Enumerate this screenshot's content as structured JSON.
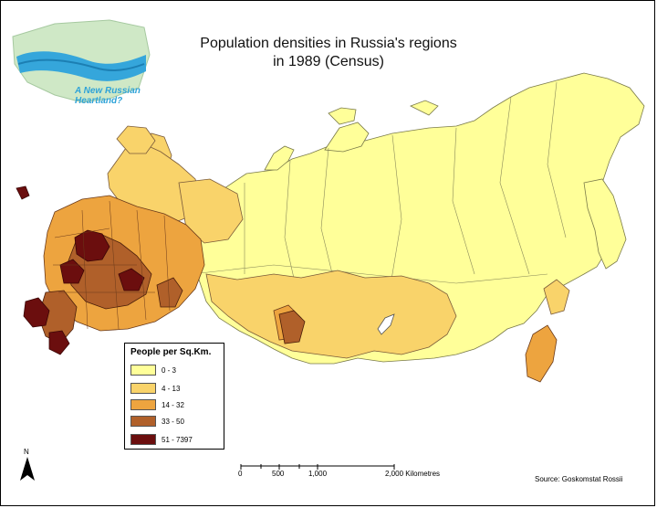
{
  "map": {
    "title_line1": "Population densities in Russia's regions",
    "title_line2": "in 1989 (Census)",
    "logo": {
      "text_line1": "A New Russian",
      "text_line2": "Heartland?"
    },
    "legend": {
      "title": "People per Sq.Km.",
      "classes": [
        {
          "label": "0 - 3",
          "color": "#ffff99"
        },
        {
          "label": "4 - 13",
          "color": "#f9d36a"
        },
        {
          "label": "14 - 32",
          "color": "#eda43f"
        },
        {
          "label": "33 - 50",
          "color": "#b0602a"
        },
        {
          "label": "51 - 7397",
          "color": "#6b0e0e"
        }
      ]
    },
    "north_label": "N",
    "scale": {
      "ticks": [
        "0",
        "500",
        "1,000",
        "2,000 Kilometres"
      ]
    },
    "source": "Source: Goskomstat Rossii"
  }
}
